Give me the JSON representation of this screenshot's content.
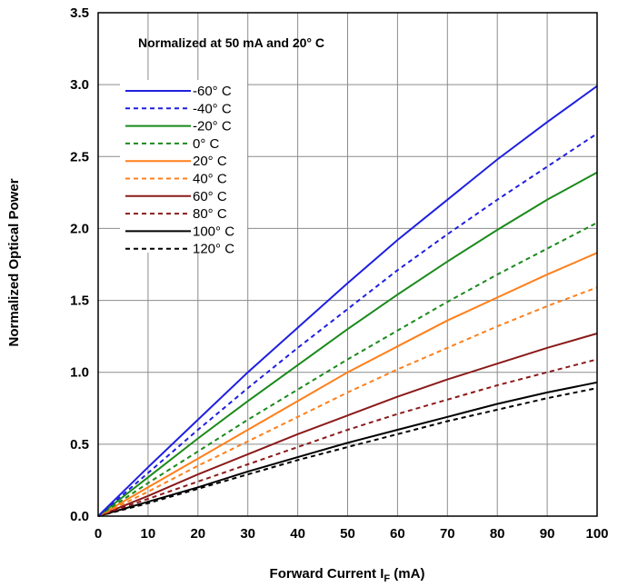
{
  "chart_data": {
    "type": "line",
    "annotation": "Normalized at 50 mA and 20° C",
    "xlabel_main": "Forward Current I",
    "xlabel_sub": "F",
    "xlabel_unit": " (mA)",
    "ylabel": "Normalized Optical Power",
    "xlim": [
      0,
      100
    ],
    "ylim": [
      0,
      3.5
    ],
    "xticks": [
      0,
      10,
      20,
      30,
      40,
      50,
      60,
      70,
      80,
      90,
      100
    ],
    "xtick_labels": [
      "0",
      "10",
      "20",
      "30",
      "40",
      "50",
      "60",
      "70",
      "80",
      "90",
      "100"
    ],
    "yticks": [
      0,
      0.5,
      1.0,
      1.5,
      2.0,
      2.5,
      3.0,
      3.5
    ],
    "ytick_labels": [
      "0.0",
      "0.5",
      "1.0",
      "1.5",
      "2.0",
      "2.5",
      "3.0",
      "3.5"
    ],
    "grid": true,
    "legend_position": "upper-left",
    "x": [
      0,
      10,
      20,
      30,
      40,
      50,
      60,
      70,
      80,
      90,
      100
    ],
    "series": [
      {
        "name": "-60° C",
        "color": "#1f1fe0",
        "dashed": false,
        "values": [
          0,
          0.34,
          0.67,
          1.0,
          1.31,
          1.62,
          1.92,
          2.2,
          2.48,
          2.74,
          2.99
        ]
      },
      {
        "name": "-40° C",
        "color": "#1f1fe0",
        "dashed": true,
        "values": [
          0,
          0.3,
          0.6,
          0.89,
          1.17,
          1.44,
          1.71,
          1.96,
          2.2,
          2.43,
          2.66
        ]
      },
      {
        "name": "-20° C",
        "color": "#1a8a1a",
        "dashed": false,
        "values": [
          0,
          0.27,
          0.54,
          0.8,
          1.05,
          1.3,
          1.54,
          1.77,
          1.99,
          2.2,
          2.39
        ]
      },
      {
        "name": "0° C",
        "color": "#1a8a1a",
        "dashed": true,
        "values": [
          0,
          0.23,
          0.45,
          0.67,
          0.88,
          1.09,
          1.29,
          1.49,
          1.68,
          1.86,
          2.04
        ]
      },
      {
        "name": "20° C",
        "color": "#ff7f1a",
        "dashed": false,
        "values": [
          0,
          0.2,
          0.4,
          0.6,
          0.8,
          1.0,
          1.18,
          1.36,
          1.52,
          1.68,
          1.83
        ]
      },
      {
        "name": "40° C",
        "color": "#ff7f1a",
        "dashed": true,
        "values": [
          0,
          0.17,
          0.35,
          0.52,
          0.69,
          0.86,
          1.02,
          1.17,
          1.32,
          1.46,
          1.59
        ]
      },
      {
        "name": "60° C",
        "color": "#8b1a1a",
        "dashed": false,
        "values": [
          0,
          0.14,
          0.29,
          0.43,
          0.57,
          0.7,
          0.83,
          0.95,
          1.06,
          1.17,
          1.27
        ]
      },
      {
        "name": "80° C",
        "color": "#8b1a1a",
        "dashed": true,
        "values": [
          0,
          0.12,
          0.24,
          0.36,
          0.48,
          0.6,
          0.71,
          0.81,
          0.91,
          1.0,
          1.09
        ]
      },
      {
        "name": "100° C",
        "color": "#000000",
        "dashed": false,
        "values": [
          0,
          0.1,
          0.2,
          0.31,
          0.41,
          0.51,
          0.6,
          0.69,
          0.78,
          0.86,
          0.93
        ]
      },
      {
        "name": "120° C",
        "color": "#000000",
        "dashed": true,
        "values": [
          0,
          0.09,
          0.19,
          0.29,
          0.39,
          0.48,
          0.57,
          0.66,
          0.74,
          0.82,
          0.89
        ]
      }
    ]
  }
}
